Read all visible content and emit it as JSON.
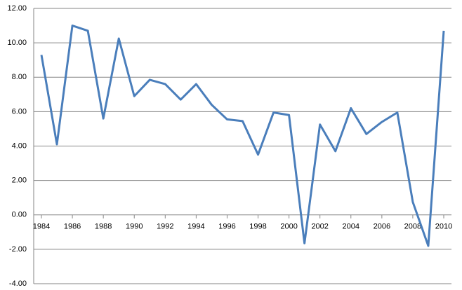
{
  "chart_data": {
    "type": "line",
    "x": [
      1984,
      1985,
      1986,
      1987,
      1988,
      1989,
      1990,
      1991,
      1992,
      1993,
      1994,
      1995,
      1996,
      1997,
      1998,
      1999,
      2000,
      2001,
      2002,
      2003,
      2004,
      2005,
      2006,
      2007,
      2008,
      2009,
      2010
    ],
    "series": [
      {
        "color": "#4a7ebb",
        "values": [
          9.3,
          4.1,
          11.0,
          10.7,
          5.6,
          10.25,
          6.9,
          7.85,
          7.6,
          6.7,
          7.6,
          6.4,
          5.55,
          5.45,
          3.5,
          5.95,
          5.8,
          -1.65,
          5.25,
          3.7,
          6.2,
          4.7,
          5.4,
          5.95,
          0.75,
          -1.8,
          10.7
        ]
      }
    ],
    "xlim": [
      1984,
      2010
    ],
    "xticks": [
      1984,
      1986,
      1988,
      1990,
      1992,
      1994,
      1996,
      1998,
      2000,
      2002,
      2004,
      2006,
      2008,
      2010
    ],
    "ylim": [
      -4,
      12
    ],
    "yticks": [
      {
        "value": -4,
        "label": "-4.00"
      },
      {
        "value": -2,
        "label": "-2.00"
      },
      {
        "value": 0,
        "label": "0.00"
      },
      {
        "value": 2,
        "label": "2.00"
      },
      {
        "value": 4,
        "label": "4.00"
      },
      {
        "value": 6,
        "label": "6.00"
      },
      {
        "value": 8,
        "label": "8.00"
      },
      {
        "value": 10,
        "label": "10.00"
      },
      {
        "value": 12,
        "label": "12.00"
      }
    ],
    "grid": true
  }
}
